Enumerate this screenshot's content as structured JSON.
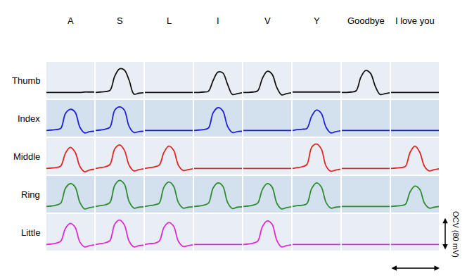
{
  "chart_data": {
    "type": "line",
    "columns": [
      "A",
      "S",
      "L",
      "I",
      "V",
      "Y",
      "Goodbye",
      "I love you"
    ],
    "x": [
      0,
      1,
      2,
      3,
      4,
      5,
      6,
      7,
      8,
      9,
      10
    ],
    "xlim": [
      0,
      10
    ],
    "ylim": [
      -15,
      75
    ],
    "tick_labels": false,
    "grid": false,
    "scale_bar": {
      "label": "OCV (80 mV)",
      "value": 80
    },
    "series": [
      {
        "name": "Thumb",
        "color": "#111111",
        "values": [
          [
            0,
            0,
            0,
            0,
            0,
            0,
            0,
            0,
            1,
            1,
            1
          ],
          [
            0,
            1,
            2,
            5,
            40,
            58,
            55,
            30,
            -4,
            -2,
            -1
          ],
          [
            0,
            0,
            0,
            0,
            0,
            0,
            0,
            0,
            0,
            0,
            0
          ],
          [
            0,
            0,
            1,
            3,
            30,
            50,
            48,
            20,
            -5,
            -3,
            -1
          ],
          [
            0,
            0,
            1,
            4,
            35,
            52,
            45,
            12,
            -6,
            -3,
            -1
          ],
          [
            1,
            1,
            1,
            1,
            1,
            1,
            1,
            1,
            1,
            1,
            1
          ],
          [
            0,
            0,
            1,
            4,
            38,
            54,
            47,
            15,
            -5,
            -3,
            -1
          ],
          [
            0,
            0,
            0,
            0,
            0,
            0,
            0,
            0,
            0,
            0,
            0
          ]
        ]
      },
      {
        "name": "Index",
        "color": "#1f1fd6",
        "values": [
          [
            0,
            1,
            2,
            5,
            42,
            52,
            45,
            8,
            -6,
            -3,
            -2
          ],
          [
            0,
            1,
            3,
            8,
            50,
            58,
            50,
            10,
            -5,
            -3,
            -2
          ],
          [
            0,
            0,
            0,
            0,
            0,
            0,
            0,
            0,
            0,
            0,
            0
          ],
          [
            0,
            1,
            2,
            6,
            44,
            56,
            48,
            10,
            -5,
            -3,
            -2
          ],
          [
            0,
            0,
            0,
            0,
            0,
            0,
            0,
            0,
            0,
            0,
            0
          ],
          [
            0,
            2,
            3,
            5,
            35,
            50,
            42,
            8,
            -6,
            -3,
            -1
          ],
          [
            0,
            0,
            0,
            0,
            0,
            0,
            0,
            0,
            0,
            0,
            0
          ],
          [
            0,
            0,
            0,
            0,
            0,
            0,
            0,
            0,
            0,
            0,
            0
          ]
        ]
      },
      {
        "name": "Middle",
        "color": "#e02424",
        "values": [
          [
            0,
            1,
            2,
            6,
            38,
            52,
            40,
            5,
            -8,
            -4,
            -2
          ],
          [
            0,
            2,
            4,
            10,
            48,
            58,
            45,
            8,
            -6,
            -3,
            -1
          ],
          [
            0,
            2,
            4,
            8,
            40,
            55,
            45,
            8,
            -5,
            -3,
            -1
          ],
          [
            0,
            0,
            0,
            0,
            0,
            0,
            0,
            0,
            0,
            0,
            0
          ],
          [
            0,
            0,
            0,
            0,
            0,
            0,
            0,
            0,
            0,
            0,
            0
          ],
          [
            0,
            2,
            4,
            10,
            52,
            60,
            48,
            6,
            -7,
            -4,
            -2
          ],
          [
            0,
            0,
            0,
            0,
            0,
            0,
            0,
            0,
            0,
            0,
            0
          ],
          [
            0,
            1,
            2,
            5,
            40,
            55,
            40,
            5,
            -6,
            -3,
            -1
          ]
        ]
      },
      {
        "name": "Ring",
        "color": "#2e8b2e",
        "values": [
          [
            0,
            1,
            3,
            8,
            45,
            56,
            48,
            10,
            -6,
            -3,
            -1
          ],
          [
            0,
            2,
            4,
            10,
            52,
            64,
            55,
            12,
            -4,
            -2,
            -1
          ],
          [
            0,
            2,
            4,
            8,
            48,
            60,
            50,
            10,
            -4,
            -2,
            -1
          ],
          [
            0,
            1,
            3,
            8,
            46,
            58,
            50,
            10,
            -5,
            -2,
            -1
          ],
          [
            0,
            1,
            3,
            8,
            42,
            56,
            48,
            8,
            -6,
            -3,
            -1
          ],
          [
            0,
            2,
            3,
            7,
            44,
            58,
            48,
            10,
            -4,
            -2,
            -1
          ],
          [
            0,
            0,
            0,
            0,
            0,
            0,
            0,
            0,
            0,
            0,
            0
          ],
          [
            0,
            1,
            2,
            5,
            36,
            50,
            42,
            8,
            -4,
            -2,
            0
          ]
        ]
      },
      {
        "name": "Little",
        "color": "#e028d2",
        "values": [
          [
            0,
            1,
            3,
            8,
            40,
            52,
            42,
            6,
            -6,
            -3,
            -1
          ],
          [
            0,
            2,
            4,
            10,
            50,
            60,
            48,
            8,
            -6,
            -3,
            -2
          ],
          [
            0,
            2,
            3,
            8,
            42,
            54,
            45,
            8,
            -5,
            -3,
            -1
          ],
          [
            0,
            0,
            0,
            0,
            0,
            0,
            0,
            0,
            0,
            0,
            0
          ],
          [
            0,
            1,
            3,
            8,
            44,
            58,
            50,
            10,
            -6,
            -3,
            -1
          ],
          [
            0,
            0,
            0,
            0,
            0,
            0,
            0,
            0,
            0,
            0,
            0
          ],
          [
            0,
            0,
            0,
            0,
            0,
            0,
            0,
            0,
            0,
            0,
            0
          ],
          [
            0,
            0,
            0,
            0,
            0,
            0,
            0,
            0,
            0,
            0,
            0
          ]
        ]
      }
    ]
  }
}
